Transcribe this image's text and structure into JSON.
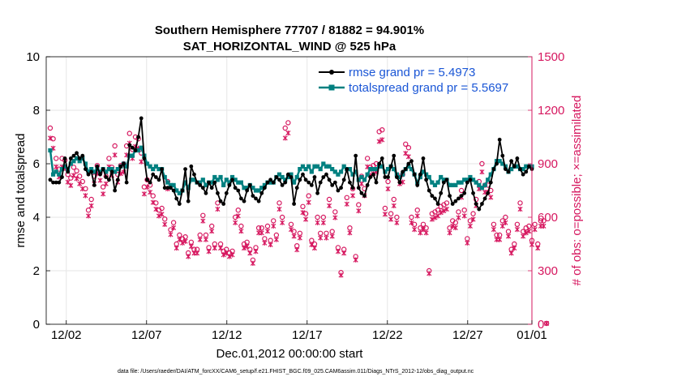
{
  "chart_data": {
    "type": "line",
    "title_line1": "Southern Hemisphere 77707 / 81882 = 94.901%",
    "title_line2": "SAT_HORIZONTAL_WIND @ 525 hPa",
    "xlabel": "Dec.01,2012 00:00:00 start",
    "ylabel_left": "rmse and totalspread",
    "ylabel_right": "# of obs: o=possible; ×=assimilated",
    "footnote": "data file: /Users/raeder/DAI/ATM_forcXX/CAM6_setup/f.e21.FHIST_BGC.f09_025.CAM6assim.011/Diags_NTrS_2012-12/obs_diag_output.nc",
    "xlim": [
      0.75,
      31.0
    ],
    "ylim_left": [
      0,
      10
    ],
    "ylim_right": [
      0,
      1500
    ],
    "x_tick_values": [
      2,
      7,
      12,
      17,
      22,
      27,
      31
    ],
    "x_tick_labels": [
      "12/02",
      "12/07",
      "12/12",
      "12/17",
      "12/22",
      "12/27",
      "01/01"
    ],
    "y_left_ticks": [
      0,
      2,
      4,
      6,
      8,
      10
    ],
    "y_right_ticks": [
      0,
      300,
      600,
      900,
      1200,
      1500
    ],
    "colors": {
      "rmse": "#000000",
      "spread": "#008080",
      "obs": "#d6175f",
      "legend_text": "#1a56d6"
    },
    "series": [
      {
        "name": "rmse",
        "legend": "rmse grand pr = 5.4973",
        "values": [
          5.4,
          5.3,
          5.3,
          5.3,
          5.5,
          6.2,
          5.7,
          6.2,
          6.3,
          6.4,
          6.2,
          6.3,
          5.8,
          5.6,
          5.7,
          5.2,
          5.9,
          5.6,
          5.8,
          5.5,
          5.4,
          5.7,
          5.0,
          5.4,
          5.9,
          6.0,
          5.3,
          6.7,
          6.6,
          6.5,
          7.0,
          7.7,
          6.2,
          5.4,
          5.3,
          5.6,
          5.5,
          5.4,
          5.8,
          5.1,
          5.1,
          5.1,
          5.0,
          4.7,
          4.5,
          5.0,
          5.8,
          4.6,
          5.9,
          5.6,
          5.3,
          5.2,
          5.1,
          4.9,
          5.3,
          5.1,
          5.3,
          4.9,
          4.6,
          4.5,
          4.9,
          5.2,
          5.4,
          5.1,
          5.0,
          4.7,
          4.6,
          5.0,
          5.2,
          4.8,
          4.7,
          4.6,
          4.9,
          5.1,
          5.3,
          5.4,
          5.3,
          5.5,
          5.4,
          5.2,
          5.3,
          5.6,
          5.5,
          4.5,
          5.1,
          5.4,
          5.6,
          5.4,
          5.3,
          5.2,
          5.5,
          4.9,
          5.3,
          5.5,
          5.6,
          5.4,
          5.2,
          5.3,
          5.0,
          5.1,
          5.4,
          5.8,
          5.3,
          5.1,
          6.3,
          5.1,
          4.9,
          4.8,
          5.2,
          5.5,
          5.6,
          5.3,
          6.0,
          6.2,
          5.5,
          5.5,
          5.9,
          6.3,
          5.5,
          5.3,
          5.7,
          5.8,
          6.0,
          6.1,
          5.6,
          5.2,
          5.6,
          6.2,
          5.4,
          5.0,
          4.8,
          4.7,
          4.5,
          4.9,
          5.3,
          5.4,
          4.8,
          4.5,
          4.6,
          4.7,
          4.8,
          4.9,
          5.3,
          5.4,
          4.9,
          4.5,
          4.3,
          4.5,
          4.7,
          4.9,
          5.3,
          5.8,
          6.0,
          6.9,
          6.3,
          5.8,
          5.7,
          6.1,
          5.9,
          6.2,
          5.8,
          5.6,
          5.7,
          5.9,
          5.8
        ]
      },
      {
        "name": "totalspread",
        "legend": "totalspread grand pr = 5.5697",
        "values": [
          6.5,
          5.6,
          5.7,
          5.6,
          5.8,
          5.9,
          5.8,
          6.0,
          6.1,
          6.2,
          6.1,
          6.2,
          6.0,
          5.7,
          5.8,
          5.7,
          5.8,
          5.7,
          5.8,
          5.7,
          5.8,
          5.8,
          5.7,
          5.8,
          5.9,
          6.0,
          5.9,
          6.3,
          6.3,
          6.5,
          6.5,
          6.6,
          6.3,
          6.0,
          5.9,
          5.8,
          5.9,
          5.8,
          5.8,
          5.5,
          5.3,
          5.2,
          5.2,
          5.0,
          4.9,
          5.0,
          5.3,
          5.1,
          5.4,
          5.4,
          5.3,
          5.3,
          5.4,
          5.2,
          5.3,
          5.3,
          5.5,
          5.4,
          5.5,
          5.2,
          5.4,
          5.3,
          5.5,
          5.4,
          5.3,
          5.3,
          5.1,
          5.1,
          5.2,
          5.1,
          5.0,
          5.0,
          5.1,
          5.2,
          5.3,
          5.3,
          5.3,
          5.5,
          5.6,
          5.5,
          5.4,
          5.5,
          5.6,
          5.3,
          5.5,
          5.8,
          5.9,
          5.8,
          5.9,
          5.7,
          5.9,
          5.9,
          5.8,
          6.0,
          5.9,
          5.9,
          5.8,
          5.7,
          5.6,
          5.7,
          5.9,
          5.8,
          5.8,
          5.6,
          5.7,
          5.4,
          5.5,
          5.4,
          5.6,
          5.8,
          5.8,
          5.8,
          5.9,
          5.9,
          5.7,
          5.8,
          5.9,
          5.8,
          5.6,
          5.5,
          5.6,
          5.8,
          5.9,
          5.8,
          5.6,
          5.3,
          5.5,
          5.7,
          5.6,
          5.5,
          5.3,
          5.2,
          5.3,
          5.5,
          5.4,
          5.4,
          5.2,
          5.2,
          5.2,
          5.3,
          5.3,
          5.4,
          5.4,
          5.5,
          5.4,
          5.3,
          5.2,
          5.1,
          5.2,
          5.4,
          5.6,
          5.8,
          6.1,
          6.1,
          6.0,
          5.9,
          5.7,
          5.8,
          5.9,
          5.9,
          5.8,
          5.8,
          5.9,
          5.9,
          5.9
        ]
      }
    ],
    "obs_possible": [
      1100,
      1040,
      930,
      870,
      930,
      920,
      840,
      820,
      880,
      860,
      830,
      800,
      760,
      640,
      700,
      830,
      890,
      850,
      770,
      830,
      930,
      880,
      1000,
      840,
      890,
      900,
      1000,
      1070,
      980,
      1050,
      1040,
      960,
      770,
      810,
      780,
      720,
      680,
      640,
      650,
      590,
      800,
      530,
      570,
      450,
      500,
      480,
      490,
      400,
      460,
      420,
      420,
      500,
      610,
      500,
      430,
      550,
      450,
      680,
      450,
      410,
      420,
      400,
      410,
      600,
      640,
      550,
      450,
      460,
      420,
      360,
      430,
      540,
      540,
      480,
      550,
      470,
      580,
      500,
      680,
      600,
      1100,
      1130,
      560,
      520,
      440,
      510,
      660,
      620,
      720,
      470,
      450,
      600,
      510,
      600,
      510,
      700,
      520,
      630,
      430,
      290,
      420,
      710,
      540,
      760,
      380,
      670,
      830,
      760,
      930,
      880,
      890,
      900,
      1080,
      1090,
      650,
      800,
      620,
      700,
      600,
      830,
      840,
      1010,
      990,
      600,
      560,
      640,
      540,
      560,
      540,
      300,
      620,
      630,
      640,
      660,
      670,
      680,
      540,
      580,
      570,
      630,
      750,
      640,
      480,
      580,
      620,
      700,
      800,
      900,
      780,
      780,
      750,
      560,
      500,
      500,
      580,
      600,
      520,
      420,
      450,
      560,
      680,
      520,
      540,
      550,
      470,
      560,
      450,
      580,
      580,
      5
    ]
  }
}
